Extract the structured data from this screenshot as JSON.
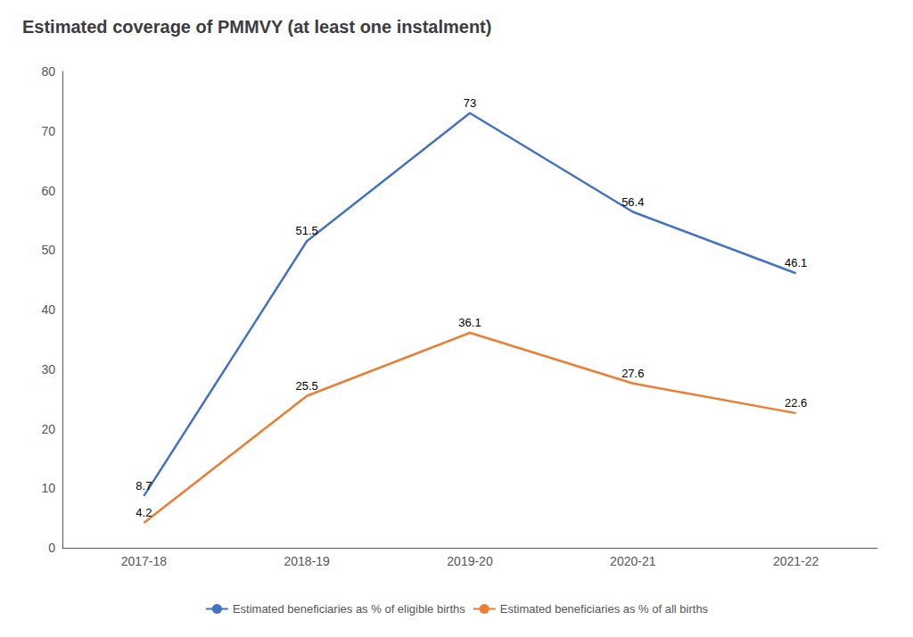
{
  "chart_data": {
    "type": "line",
    "title": "Estimated coverage of PMMVY (at least one instalment)",
    "categories": [
      "2017-18",
      "2018-19",
      "2019-20",
      "2020-21",
      "2021-22"
    ],
    "series": [
      {
        "name": "Estimated beneficiaries as % of eligible births",
        "color": "#4472C4",
        "values": [
          8.7,
          51.5,
          73,
          56.4,
          46.1
        ]
      },
      {
        "name": "Estimated beneficiaries as % of all births",
        "color": "#ED7D31",
        "values": [
          4.2,
          25.5,
          36.1,
          27.6,
          22.6
        ]
      }
    ],
    "ylim": [
      0,
      80
    ],
    "yticks": [
      0,
      10,
      20,
      30,
      40,
      50,
      60,
      70,
      80
    ],
    "grid": false,
    "legend": "bottom",
    "data_labels": true
  }
}
